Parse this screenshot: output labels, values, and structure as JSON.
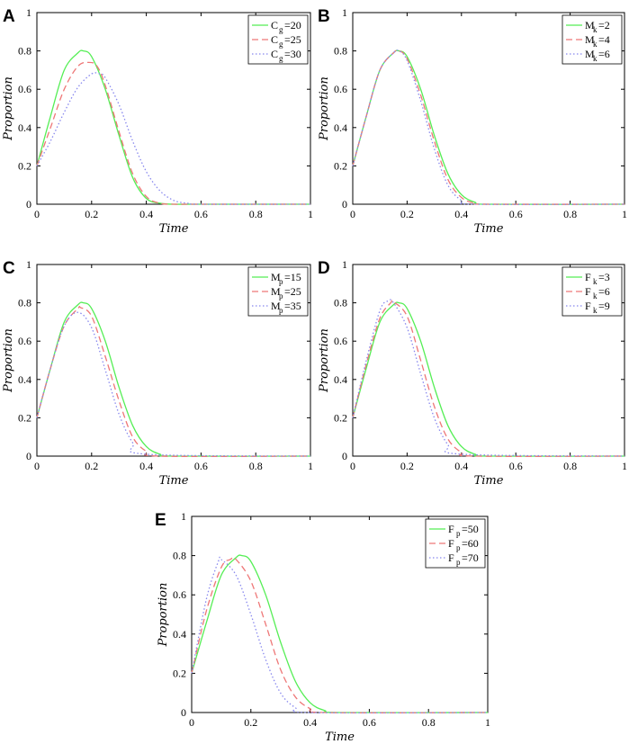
{
  "chart_data": [
    {
      "panel": "A",
      "type": "line",
      "xlabel": "Time",
      "ylabel": "Proportion",
      "xlim": [
        0,
        1
      ],
      "ylim": [
        0,
        1
      ],
      "legend_position": "top-right",
      "x_ticks": [
        "0",
        "0.2",
        "0.4",
        "0.6",
        "0.8",
        "1"
      ],
      "y_ticks": [
        "0",
        "0.2",
        "0.4",
        "0.6",
        "0.8",
        "1"
      ],
      "series": [
        {
          "legend_main": "C",
          "legend_sub": "g",
          "legend_value": "=20",
          "color": "#55ee55",
          "dash": "solid",
          "x": [
            0,
            0.05,
            0.1,
            0.15,
            0.17,
            0.2,
            0.25,
            0.3,
            0.35,
            0.4,
            0.45,
            0.5,
            0.6,
            1
          ],
          "y": [
            0.2,
            0.46,
            0.7,
            0.79,
            0.8,
            0.77,
            0.6,
            0.36,
            0.14,
            0.03,
            0.005,
            0,
            0,
            0
          ]
        },
        {
          "legend_main": "C",
          "legend_sub": "g",
          "legend_value": "=25",
          "color": "#ee7777",
          "dash": "dashed",
          "x": [
            0,
            0.05,
            0.1,
            0.15,
            0.19,
            0.22,
            0.25,
            0.3,
            0.35,
            0.4,
            0.45,
            0.5,
            0.6,
            1
          ],
          "y": [
            0.2,
            0.4,
            0.6,
            0.72,
            0.74,
            0.72,
            0.62,
            0.38,
            0.16,
            0.04,
            0.005,
            0,
            0,
            0
          ]
        },
        {
          "legend_main": "C",
          "legend_sub": "g",
          "legend_value": "=30",
          "color": "#8888ee",
          "dash": "dotted",
          "x": [
            0,
            0.05,
            0.1,
            0.15,
            0.2,
            0.23,
            0.25,
            0.3,
            0.35,
            0.4,
            0.45,
            0.5,
            0.55,
            0.6,
            1
          ],
          "y": [
            0.2,
            0.33,
            0.48,
            0.61,
            0.68,
            0.68,
            0.66,
            0.52,
            0.33,
            0.17,
            0.07,
            0.02,
            0.005,
            0,
            0
          ]
        }
      ]
    },
    {
      "panel": "B",
      "type": "line",
      "xlabel": "Time",
      "ylabel": "Proportion",
      "xlim": [
        0,
        1
      ],
      "ylim": [
        0,
        1
      ],
      "legend_position": "top-right",
      "x_ticks": [
        "0",
        "0.2",
        "0.4",
        "0.6",
        "0.8",
        "1"
      ],
      "y_ticks": [
        "0",
        "0.2",
        "0.4",
        "0.6",
        "0.8",
        "1"
      ],
      "series": [
        {
          "legend_main": "M",
          "legend_sub": "k",
          "legend_value": "=2",
          "color": "#55ee55",
          "dash": "solid",
          "x": [
            0,
            0.05,
            0.1,
            0.15,
            0.17,
            0.2,
            0.25,
            0.3,
            0.35,
            0.4,
            0.45,
            0.5,
            1
          ],
          "y": [
            0.2,
            0.46,
            0.7,
            0.79,
            0.8,
            0.77,
            0.6,
            0.36,
            0.16,
            0.05,
            0.01,
            0,
            0
          ]
        },
        {
          "legend_main": "M",
          "legend_sub": "k",
          "legend_value": "=4",
          "color": "#ee7777",
          "dash": "dashed",
          "x": [
            0,
            0.05,
            0.1,
            0.15,
            0.17,
            0.2,
            0.25,
            0.3,
            0.35,
            0.4,
            0.45,
            0.5,
            1
          ],
          "y": [
            0.2,
            0.46,
            0.7,
            0.79,
            0.8,
            0.76,
            0.57,
            0.33,
            0.13,
            0.035,
            0.005,
            0,
            0
          ]
        },
        {
          "legend_main": "M",
          "legend_sub": "k",
          "legend_value": "=6",
          "color": "#8888ee",
          "dash": "dotted",
          "x": [
            0,
            0.05,
            0.1,
            0.15,
            0.17,
            0.2,
            0.25,
            0.3,
            0.35,
            0.4,
            0.45,
            1
          ],
          "y": [
            0.2,
            0.46,
            0.7,
            0.79,
            0.8,
            0.75,
            0.54,
            0.29,
            0.1,
            0.02,
            0,
            0
          ]
        }
      ]
    },
    {
      "panel": "C",
      "type": "line",
      "xlabel": "Time",
      "ylabel": "Proportion",
      "xlim": [
        0,
        1
      ],
      "ylim": [
        0,
        1
      ],
      "legend_position": "top-right",
      "x_ticks": [
        "0",
        "0.2",
        "0.4",
        "0.6",
        "0.8",
        "1"
      ],
      "y_ticks": [
        "0",
        "0.2",
        "0.4",
        "0.6",
        "0.8",
        "1"
      ],
      "series": [
        {
          "legend_main": "M",
          "legend_sub": "p",
          "legend_value": "=15",
          "color": "#55ee55",
          "dash": "solid",
          "x": [
            0,
            0.05,
            0.1,
            0.15,
            0.17,
            0.2,
            0.25,
            0.3,
            0.35,
            0.4,
            0.45,
            0.5,
            1
          ],
          "y": [
            0.2,
            0.46,
            0.7,
            0.79,
            0.8,
            0.77,
            0.6,
            0.36,
            0.16,
            0.05,
            0.01,
            0,
            0
          ]
        },
        {
          "legend_main": "M",
          "legend_sub": "p",
          "legend_value": "=25",
          "color": "#ee7777",
          "dash": "dashed",
          "x": [
            0,
            0.05,
            0.1,
            0.15,
            0.16,
            0.2,
            0.25,
            0.3,
            0.35,
            0.4,
            0.45,
            1
          ],
          "y": [
            0.2,
            0.46,
            0.68,
            0.77,
            0.775,
            0.73,
            0.52,
            0.29,
            0.1,
            0.025,
            0,
            0
          ]
        },
        {
          "legend_main": "M",
          "legend_sub": "p",
          "legend_value": "=35",
          "color": "#8888ee",
          "dash": "dotted",
          "x": [
            0,
            0.05,
            0.1,
            0.15,
            0.2,
            0.25,
            0.3,
            0.35,
            0.4,
            1
          ],
          "y": [
            0.2,
            0.46,
            0.68,
            0.75,
            0.67,
            0.45,
            0.22,
            0.07,
            0.01,
            0
          ]
        }
      ]
    },
    {
      "panel": "D",
      "type": "line",
      "xlabel": "Time",
      "ylabel": "Proportion",
      "xlim": [
        0,
        1
      ],
      "ylim": [
        0,
        1
      ],
      "legend_position": "top-right",
      "x_ticks": [
        "0",
        "0.2",
        "0.4",
        "0.6",
        "0.8",
        "1"
      ],
      "y_ticks": [
        "0",
        "0.2",
        "0.4",
        "0.6",
        "0.8",
        "1"
      ],
      "series": [
        {
          "legend_main": "F",
          "legend_sub": "k",
          "legend_value": "=3",
          "color": "#55ee55",
          "dash": "solid",
          "x": [
            0,
            0.05,
            0.1,
            0.15,
            0.17,
            0.2,
            0.25,
            0.3,
            0.35,
            0.4,
            0.45,
            0.5,
            1
          ],
          "y": [
            0.2,
            0.46,
            0.7,
            0.79,
            0.8,
            0.77,
            0.6,
            0.36,
            0.16,
            0.05,
            0.01,
            0,
            0
          ]
        },
        {
          "legend_main": "F",
          "legend_sub": "k",
          "legend_value": "=6",
          "color": "#ee7777",
          "dash": "dashed",
          "x": [
            0,
            0.05,
            0.1,
            0.14,
            0.15,
            0.2,
            0.25,
            0.3,
            0.35,
            0.4,
            0.45,
            1
          ],
          "y": [
            0.2,
            0.48,
            0.72,
            0.8,
            0.805,
            0.73,
            0.5,
            0.26,
            0.09,
            0.02,
            0,
            0
          ]
        },
        {
          "legend_main": "F",
          "legend_sub": "k",
          "legend_value": "=9",
          "color": "#8888ee",
          "dash": "dotted",
          "x": [
            0,
            0.05,
            0.1,
            0.13,
            0.15,
            0.2,
            0.25,
            0.3,
            0.35,
            0.4,
            1
          ],
          "y": [
            0.2,
            0.5,
            0.76,
            0.81,
            0.8,
            0.67,
            0.43,
            0.2,
            0.06,
            0.01,
            0
          ]
        }
      ]
    },
    {
      "panel": "E",
      "type": "line",
      "xlabel": "Time",
      "ylabel": "Proportion",
      "xlim": [
        0,
        1
      ],
      "ylim": [
        0,
        1
      ],
      "legend_position": "top-right",
      "x_ticks": [
        "0",
        "0.2",
        "0.4",
        "0.6",
        "0.8",
        "1"
      ],
      "y_ticks": [
        "0",
        "0.2",
        "0.4",
        "0.6",
        "0.8",
        "1"
      ],
      "series": [
        {
          "legend_main": "F",
          "legend_sub": "p",
          "legend_value": "=50",
          "color": "#55ee55",
          "dash": "solid",
          "x": [
            0,
            0.05,
            0.1,
            0.15,
            0.17,
            0.2,
            0.25,
            0.3,
            0.35,
            0.4,
            0.45,
            0.5,
            1
          ],
          "y": [
            0.2,
            0.46,
            0.7,
            0.79,
            0.8,
            0.77,
            0.6,
            0.36,
            0.16,
            0.05,
            0.01,
            0,
            0
          ]
        },
        {
          "legend_main": "F",
          "legend_sub": "p",
          "legend_value": "=60",
          "color": "#ee7777",
          "dash": "dashed",
          "x": [
            0,
            0.05,
            0.1,
            0.13,
            0.15,
            0.2,
            0.25,
            0.3,
            0.35,
            0.4,
            0.45,
            1
          ],
          "y": [
            0.2,
            0.52,
            0.74,
            0.78,
            0.78,
            0.67,
            0.45,
            0.22,
            0.08,
            0.02,
            0,
            0
          ]
        },
        {
          "legend_main": "F",
          "legend_sub": "p",
          "legend_value": "=70",
          "color": "#8888ee",
          "dash": "dotted",
          "x": [
            0,
            0.05,
            0.09,
            0.1,
            0.15,
            0.2,
            0.25,
            0.3,
            0.35,
            0.4,
            1
          ],
          "y": [
            0.2,
            0.58,
            0.77,
            0.78,
            0.7,
            0.5,
            0.27,
            0.1,
            0.025,
            0,
            0
          ]
        }
      ]
    }
  ]
}
